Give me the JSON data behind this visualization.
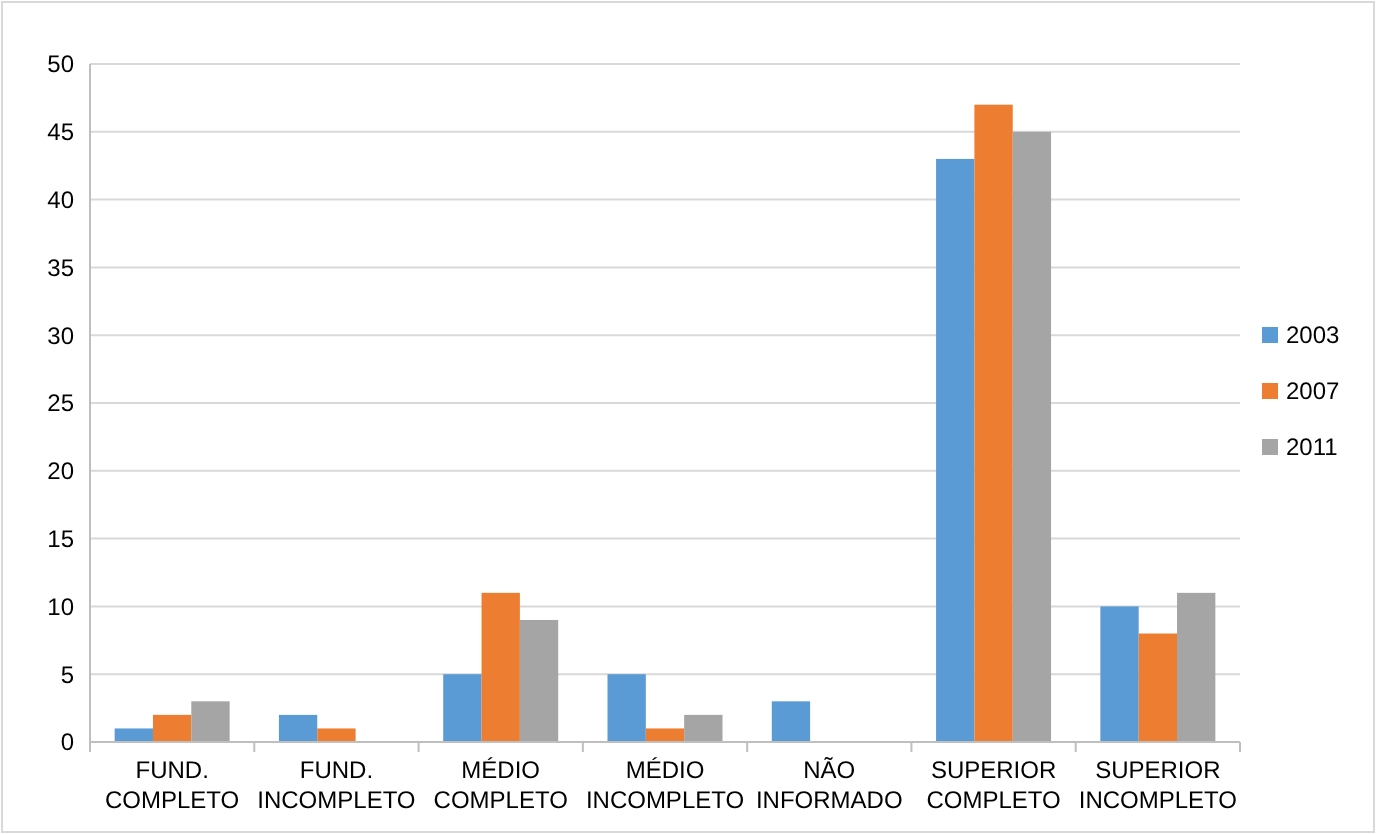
{
  "chart_data": {
    "type": "bar",
    "categories": [
      "FUND. COMPLETO",
      "FUND. INCOMPLETO",
      "MÉDIO COMPLETO",
      "MÉDIO INCOMPLETO",
      "NÃO INFORMADO",
      "SUPERIOR COMPLETO",
      "SUPERIOR INCOMPLETO"
    ],
    "series": [
      {
        "name": "2003",
        "color": "#5b9bd5",
        "values": [
          1,
          2,
          5,
          5,
          3,
          43,
          10
        ]
      },
      {
        "name": "2007",
        "color": "#ed7d31",
        "values": [
          2,
          1,
          11,
          1,
          0,
          47,
          8
        ]
      },
      {
        "name": "2011",
        "color": "#a5a5a5",
        "values": [
          3,
          0,
          9,
          2,
          0,
          45,
          11
        ]
      }
    ],
    "ylim": [
      0,
      50
    ],
    "yticks": [
      0,
      5,
      10,
      15,
      20,
      25,
      30,
      35,
      40,
      45,
      50
    ],
    "grid": "y",
    "legend": "right"
  }
}
